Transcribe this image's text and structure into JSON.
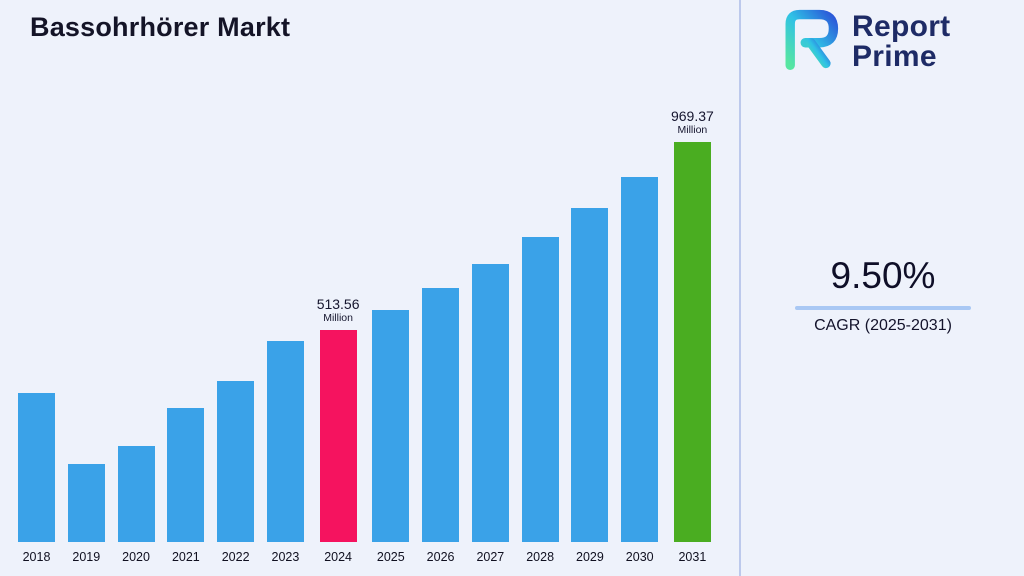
{
  "title": "Bassohrhörer Markt",
  "logo": {
    "line1": "Report",
    "line2": "Prime"
  },
  "cagr": {
    "value": "9.50%",
    "label": "CAGR (2025-2031)"
  },
  "colors": {
    "background": "#eef2fb",
    "divider": "#bcc9ec",
    "bar_default": "#3aa2e8",
    "bar_highlight": "#f5135f",
    "bar_final": "#4aad21",
    "logo_navy": "#1e2b66",
    "cagr_underline": "#a9c8f4"
  },
  "chart_data": {
    "type": "bar",
    "title": "Bassohrhörer Markt",
    "unit": "Million",
    "categories": [
      "2018",
      "2019",
      "2020",
      "2021",
      "2022",
      "2023",
      "2024",
      "2025",
      "2026",
      "2027",
      "2028",
      "2029",
      "2030",
      "2031"
    ],
    "values": [
      362,
      190,
      232,
      324,
      391,
      487,
      513.56,
      562.35,
      615.77,
      674.27,
      738.33,
      808.47,
      885.27,
      969.37
    ],
    "ylim": [
      0,
      1000
    ],
    "grid": false,
    "legend": "none",
    "bar_colors": {
      "default": "#3aa2e8",
      "2024": "#f5135f",
      "2031": "#4aad21"
    },
    "annotations": [
      {
        "year": "2024",
        "value_text": "513.56",
        "unit_text": "Million"
      },
      {
        "year": "2031",
        "value_text": "969.37",
        "unit_text": "Million"
      }
    ]
  }
}
